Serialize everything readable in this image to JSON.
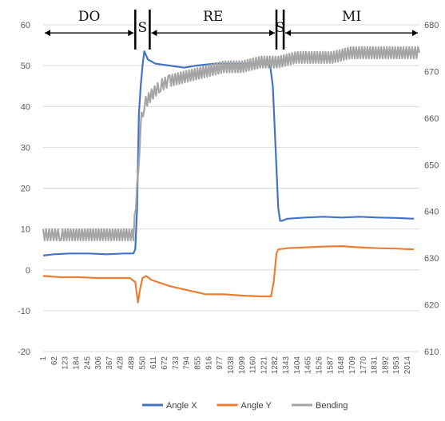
{
  "chart_data": {
    "type": "line",
    "left_axis": {
      "ylim": [
        -20,
        60
      ],
      "ticks": [
        -20,
        -10,
        0,
        10,
        20,
        30,
        40,
        50,
        60
      ]
    },
    "right_axis": {
      "ylim": [
        610,
        680
      ],
      "ticks": [
        610,
        620,
        630,
        640,
        650,
        660,
        670,
        680
      ]
    },
    "x_range": [
      1,
      2080
    ],
    "x_ticks": [
      1,
      62,
      123,
      184,
      245,
      306,
      367,
      428,
      489,
      550,
      611,
      672,
      733,
      794,
      855,
      916,
      977,
      1038,
      1099,
      1160,
      1221,
      1282,
      1343,
      1404,
      1465,
      1526,
      1587,
      1648,
      1709,
      1770,
      1831,
      1892,
      1953,
      2014
    ],
    "grid": true,
    "legend_position": "bottom",
    "phases": [
      {
        "label": "DO",
        "start": 1,
        "end": 510
      },
      {
        "label": "S",
        "start": 510,
        "end": 590
      },
      {
        "label": "RE",
        "start": 590,
        "end": 1290
      },
      {
        "label": "S",
        "start": 1290,
        "end": 1330
      },
      {
        "label": "MI",
        "start": 1330,
        "end": 2080
      }
    ],
    "series": [
      {
        "name": "Angle X",
        "axis": "left",
        "color": "#4472C4",
        "points": [
          [
            1,
            3.5
          ],
          [
            60,
            3.8
          ],
          [
            150,
            4
          ],
          [
            250,
            4
          ],
          [
            350,
            3.8
          ],
          [
            450,
            4
          ],
          [
            500,
            4
          ],
          [
            510,
            5
          ],
          [
            520,
            15
          ],
          [
            530,
            38
          ],
          [
            540,
            45
          ],
          [
            550,
            50
          ],
          [
            560,
            53.5
          ],
          [
            570,
            52.5
          ],
          [
            580,
            51.5
          ],
          [
            620,
            50.5
          ],
          [
            700,
            50
          ],
          [
            780,
            49.5
          ],
          [
            850,
            50
          ],
          [
            950,
            50.5
          ],
          [
            1050,
            50.5
          ],
          [
            1150,
            50.5
          ],
          [
            1230,
            50.5
          ],
          [
            1255,
            50
          ],
          [
            1270,
            45
          ],
          [
            1285,
            30
          ],
          [
            1300,
            15
          ],
          [
            1310,
            12
          ],
          [
            1320,
            12
          ],
          [
            1350,
            12.5
          ],
          [
            1450,
            12.8
          ],
          [
            1550,
            13
          ],
          [
            1650,
            12.8
          ],
          [
            1750,
            13
          ],
          [
            1850,
            12.8
          ],
          [
            1950,
            12.7
          ],
          [
            2050,
            12.5
          ]
        ]
      },
      {
        "name": "Angle Y",
        "axis": "left",
        "color": "#ED7D31",
        "points": [
          [
            1,
            -1.5
          ],
          [
            100,
            -1.8
          ],
          [
            200,
            -1.8
          ],
          [
            300,
            -2
          ],
          [
            400,
            -2
          ],
          [
            480,
            -2
          ],
          [
            510,
            -3
          ],
          [
            525,
            -8
          ],
          [
            535,
            -5
          ],
          [
            550,
            -2
          ],
          [
            570,
            -1.5
          ],
          [
            600,
            -2.5
          ],
          [
            700,
            -4
          ],
          [
            800,
            -5
          ],
          [
            900,
            -6
          ],
          [
            1000,
            -6
          ],
          [
            1100,
            -6.3
          ],
          [
            1200,
            -6.5
          ],
          [
            1260,
            -6.5
          ],
          [
            1275,
            -3
          ],
          [
            1290,
            4
          ],
          [
            1300,
            5
          ],
          [
            1350,
            5.3
          ],
          [
            1450,
            5.5
          ],
          [
            1550,
            5.7
          ],
          [
            1650,
            5.8
          ],
          [
            1750,
            5.5
          ],
          [
            1850,
            5.3
          ],
          [
            1950,
            5.2
          ],
          [
            2050,
            5
          ]
        ]
      },
      {
        "name": "Bending",
        "axis": "right",
        "color": "#A5A5A5",
        "points": [
          [
            1,
            635
          ],
          [
            100,
            635
          ],
          [
            200,
            635
          ],
          [
            300,
            635
          ],
          [
            400,
            635
          ],
          [
            500,
            635
          ],
          [
            520,
            645
          ],
          [
            535,
            655
          ],
          [
            545,
            660
          ],
          [
            560,
            663
          ],
          [
            600,
            665
          ],
          [
            650,
            667
          ],
          [
            700,
            668
          ],
          [
            800,
            669
          ],
          [
            900,
            670
          ],
          [
            1000,
            671
          ],
          [
            1100,
            671
          ],
          [
            1200,
            672
          ],
          [
            1300,
            672
          ],
          [
            1400,
            673
          ],
          [
            1500,
            673
          ],
          [
            1600,
            673
          ],
          [
            1700,
            674
          ],
          [
            1800,
            674
          ],
          [
            1900,
            674
          ],
          [
            2000,
            674
          ],
          [
            2080,
            674
          ]
        ]
      }
    ]
  }
}
